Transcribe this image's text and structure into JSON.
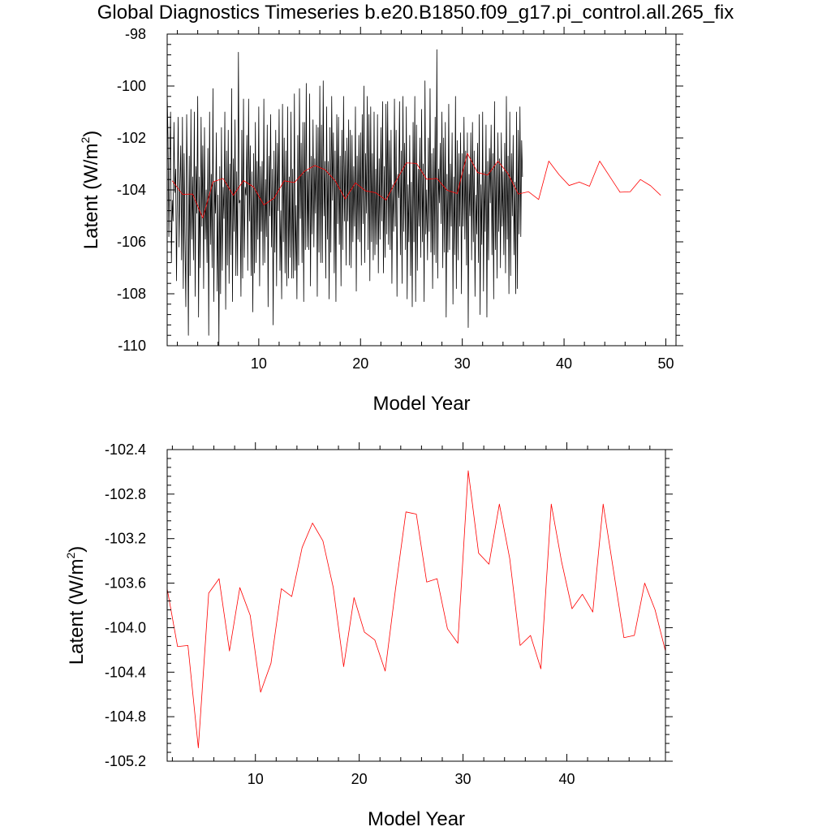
{
  "title": "Global Diagnostics Timeseries b.e20.B1850.f09_g17.pi_control.all.265_fix",
  "colors": {
    "monthly": "#000000",
    "annual": "#ff0000",
    "frame": "#000000"
  },
  "chart_data": [
    {
      "type": "line",
      "xlabel": "Model Year",
      "ylabel_main": "Latent (W/m",
      "ylabel_sup": "2",
      "ylabel_close": ")",
      "xlim": [
        1,
        51
      ],
      "ylim": [
        -110,
        -98
      ],
      "xticks": [
        10,
        20,
        30,
        40,
        50
      ],
      "xtick_labels": [
        "10",
        "20",
        "30",
        "40",
        "50"
      ],
      "yticks": [
        -110,
        -108,
        -106,
        -104,
        -102,
        -100,
        -98
      ],
      "ytick_labels": [
        "-110",
        "-108",
        "-106",
        "-104",
        "-102",
        "-100",
        "-98"
      ],
      "series": [
        {
          "color": "#000000",
          "x_start": 1.0,
          "x_step": 0.0833333,
          "values": [
            -100.3,
            -102.0,
            -105.8,
            -103.0,
            -101.0,
            -106.8,
            -104.4,
            -105.2,
            -101.4,
            -104.1,
            -103.2,
            -107.5,
            -104.1,
            -101.2,
            -106.2,
            -103.9,
            -102.3,
            -106.7,
            -101.2,
            -107.8,
            -102.6,
            -105.9,
            -108.5,
            -101.1,
            -104.2,
            -109.6,
            -102.7,
            -107.3,
            -100.9,
            -105.9,
            -103.5,
            -106.7,
            -101.0,
            -108.1,
            -103.1,
            -104.9,
            -100.4,
            -108.9,
            -103.5,
            -107.0,
            -101.2,
            -105.4,
            -102.3,
            -107.8,
            -101.6,
            -105.9,
            -104.0,
            -106.8,
            -102.4,
            -109.6,
            -101.0,
            -106.1,
            -103.4,
            -107.0,
            -100.1,
            -108.3,
            -103.7,
            -104.9,
            -101.8,
            -107.9,
            -104.2,
            -110.0,
            -103.1,
            -108.0,
            -101.6,
            -107.1,
            -103.9,
            -105.1,
            -101.0,
            -108.6,
            -102.5,
            -106.9,
            -101.7,
            -107.6,
            -103.0,
            -106.5,
            -100.1,
            -108.3,
            -102.8,
            -105.6,
            -101.3,
            -107.3,
            -103.3,
            -107.3,
            -98.7,
            -104.5,
            -104.4,
            -108.1,
            -101.7,
            -107.4,
            -100.5,
            -106.6,
            -103.9,
            -104.2,
            -101.9,
            -107.1,
            -100.5,
            -105.2,
            -102.3,
            -107.3,
            -103.3,
            -108.7,
            -102.6,
            -107.2,
            -101.4,
            -106.8,
            -102.9,
            -105.9,
            -100.8,
            -107.7,
            -103.1,
            -105.6,
            -102.9,
            -106.9,
            -100.5,
            -106.8,
            -103.6,
            -105.8,
            -101.5,
            -108.5,
            -102.7,
            -105.0,
            -101.1,
            -106.2,
            -103.2,
            -109.2,
            -102.5,
            -106.4,
            -101.7,
            -107.7,
            -102.2,
            -104.8,
            -100.9,
            -107.1,
            -104.8,
            -108.2,
            -100.7,
            -106.0,
            -102.0,
            -107.2,
            -102.5,
            -107.7,
            -100.8,
            -107.4,
            -103.5,
            -106.6,
            -101.0,
            -107.4,
            -103.2,
            -107.4,
            -100.3,
            -107.1,
            -104.6,
            -108.2,
            -101.9,
            -106.9,
            -100.1,
            -105.1,
            -102.2,
            -106.8,
            -101.4,
            -108.3,
            -101.4,
            -106.3,
            -99.9,
            -106.2,
            -103.3,
            -106.3,
            -100.3,
            -107.7,
            -102.7,
            -105.7,
            -101.3,
            -106.2,
            -102.8,
            -104.9,
            -101.5,
            -108.1,
            -101.6,
            -106.4,
            -100.0,
            -106.8,
            -101.5,
            -106.8,
            -99.8,
            -105.0,
            -102.9,
            -107.4,
            -100.8,
            -105.9,
            -102.9,
            -108.2,
            -101.6,
            -106.4,
            -100.4,
            -104.4,
            -101.8,
            -107.2,
            -102.5,
            -108.3,
            -101.1,
            -105.3,
            -101.2,
            -106.1,
            -102.7,
            -107.7,
            -101.7,
            -106.3,
            -100.4,
            -105.2,
            -102.5,
            -106.9,
            -102.0,
            -105.2,
            -101.3,
            -106.9,
            -101.7,
            -107.0,
            -101.9,
            -106.0,
            -103.1,
            -105.4,
            -100.8,
            -107.9,
            -102.7,
            -105.9,
            -101.9,
            -106.0,
            -101.8,
            -106.9,
            -101.1,
            -105.3,
            -100.0,
            -106.8,
            -102.6,
            -104.9,
            -100.4,
            -106.3,
            -101.1,
            -107.5,
            -100.8,
            -106.0,
            -102.6,
            -106.7,
            -101.0,
            -106.5,
            -103.2,
            -106.1,
            -101.1,
            -107.2,
            -102.8,
            -105.9,
            -101.6,
            -105.2,
            -100.6,
            -107.2,
            -103.1,
            -106.6,
            -100.7,
            -105.7,
            -100.6,
            -106.1,
            -102.1,
            -106.3,
            -101.7,
            -107.6,
            -103.8,
            -105.6,
            -100.5,
            -105.4,
            -101.7,
            -108.1,
            -103.4,
            -104.3,
            -100.6,
            -106.5,
            -102.5,
            -107.6,
            -100.4,
            -105.6,
            -102.2,
            -106.3,
            -100.8,
            -108.2,
            -103.8,
            -106.0,
            -101.9,
            -107.3,
            -103.7,
            -108.5,
            -101.4,
            -106.0,
            -100.4,
            -108.3,
            -101.5,
            -107.1,
            -103.2,
            -105.4,
            -102.0,
            -106.6,
            -100.9,
            -106.0,
            -103.0,
            -108.3,
            -99.8,
            -105.7,
            -104.0,
            -106.7,
            -102.0,
            -105.6,
            -100.1,
            -106.4,
            -102.6,
            -107.8,
            -102.4,
            -106.5,
            -101.2,
            -106.8,
            -98.6,
            -107.4,
            -103.2,
            -104.5,
            -102.2,
            -105.3,
            -101.0,
            -107.0,
            -102.0,
            -106.4,
            -101.4,
            -108.9,
            -103.4,
            -106.4,
            -100.7,
            -106.3,
            -103.0,
            -105.4,
            -101.8,
            -108.4,
            -103.5,
            -106.5,
            -100.4,
            -107.8,
            -102.1,
            -106.7,
            -102.6,
            -105.4,
            -101.8,
            -108.0,
            -102.6,
            -105.4,
            -101.2,
            -105.9,
            -102.5,
            -106.9,
            -101.8,
            -109.3,
            -103.4,
            -105.0,
            -101.8,
            -106.7,
            -101.4,
            -106.0,
            -102.5,
            -108.1,
            -104.2,
            -105.7,
            -102.2,
            -106.8,
            -101.1,
            -108.8,
            -103.8,
            -106.1,
            -101.0,
            -107.9,
            -103.3,
            -105.6,
            -101.5,
            -108.9,
            -102.9,
            -106.7,
            -102.4,
            -104.5,
            -101.5,
            -106.5,
            -102.6,
            -108.2,
            -100.6,
            -106.3,
            -103.0,
            -107.4,
            -101.8,
            -105.6,
            -102.8,
            -107.0,
            -101.8,
            -105.4,
            -103.3,
            -106.5,
            -102.2,
            -107.2,
            -100.4,
            -105.9,
            -102.7,
            -108.0,
            -101.0,
            -107.3,
            -102.6,
            -105.0,
            -101.9,
            -106.5,
            -103.7,
            -108.0,
            -101.0,
            -107.8,
            -101.7,
            -105.7,
            -100.8,
            -105.8,
            -102.1,
            -103.5
          ]
        },
        {
          "color": "#ff0000",
          "x": [
            1.5,
            2.5,
            3.5,
            4.5,
            5.5,
            6.5,
            7.5,
            8.5,
            9.5,
            10.5,
            11.5,
            12.5,
            13.5,
            14.5,
            15.5,
            16.5,
            17.5,
            18.5,
            19.5,
            20.5,
            21.5,
            22.5,
            23.5,
            24.5,
            25.5,
            26.5,
            27.5,
            28.5,
            29.5,
            30.5,
            31.5,
            32.5,
            33.5,
            34.5,
            35.5,
            36.5,
            37.5,
            38.5,
            39.5,
            40.5,
            41.5,
            42.5,
            43.5,
            44.5,
            45.5,
            46.5,
            47.5,
            48.5,
            49.5
          ],
          "values": [
            -103.65,
            -104.17,
            -104.16,
            -105.08,
            -103.69,
            -103.56,
            -104.21,
            -103.64,
            -103.89,
            -104.58,
            -104.32,
            -103.65,
            -103.72,
            -103.28,
            -103.06,
            -103.22,
            -103.64,
            -104.35,
            -103.73,
            -104.04,
            -104.11,
            -104.39,
            -103.65,
            -102.96,
            -102.98,
            -103.59,
            -103.56,
            -104.01,
            -104.14,
            -102.59,
            -103.33,
            -103.43,
            -102.89,
            -103.38,
            -104.16,
            -104.07,
            -104.37,
            -102.89,
            -103.41,
            -103.83,
            -103.7,
            -103.86,
            -102.89,
            -103.49,
            -104.09,
            -104.07,
            -103.6,
            -103.84,
            -104.21
          ]
        }
      ]
    },
    {
      "type": "line",
      "xlabel": "Model Year",
      "ylabel_main": "Latent (W/m",
      "ylabel_sup": "2",
      "ylabel_close": ")",
      "xlim": [
        1.5,
        49.5
      ],
      "ylim": [
        -105.2,
        -102.4
      ],
      "xticks": [
        10,
        20,
        30,
        40
      ],
      "xtick_labels": [
        "10",
        "20",
        "30",
        "40"
      ],
      "yticks": [
        -105.2,
        -104.8,
        -104.4,
        -104.0,
        -103.6,
        -103.2,
        -102.8,
        -102.4
      ],
      "ytick_labels": [
        "-105.2",
        "-104.8",
        "-104.4",
        "-104.0",
        "-103.6",
        "-103.2",
        "-102.8",
        "-102.4"
      ],
      "series": [
        {
          "color": "#ff0000",
          "x": [
            1.5,
            2.5,
            3.5,
            4.5,
            5.5,
            6.5,
            7.5,
            8.5,
            9.5,
            10.5,
            11.5,
            12.5,
            13.5,
            14.5,
            15.5,
            16.5,
            17.5,
            18.5,
            19.5,
            20.5,
            21.5,
            22.5,
            23.5,
            24.5,
            25.5,
            26.5,
            27.5,
            28.5,
            29.5,
            30.5,
            31.5,
            32.5,
            33.5,
            34.5,
            35.5,
            36.5,
            37.5,
            38.5,
            39.5,
            40.5,
            41.5,
            42.5,
            43.5,
            44.5,
            45.5,
            46.5,
            47.5,
            48.5,
            49.5
          ],
          "values": [
            -103.65,
            -104.17,
            -104.16,
            -105.08,
            -103.69,
            -103.56,
            -104.21,
            -103.64,
            -103.89,
            -104.58,
            -104.32,
            -103.65,
            -103.72,
            -103.28,
            -103.06,
            -103.22,
            -103.64,
            -104.35,
            -103.73,
            -104.04,
            -104.11,
            -104.39,
            -103.65,
            -102.96,
            -102.98,
            -103.59,
            -103.56,
            -104.01,
            -104.14,
            -102.59,
            -103.33,
            -103.43,
            -102.89,
            -103.38,
            -104.16,
            -104.07,
            -104.37,
            -102.89,
            -103.41,
            -103.83,
            -103.7,
            -103.86,
            -102.89,
            -103.49,
            -104.09,
            -104.07,
            -103.6,
            -103.84,
            -104.21
          ]
        }
      ]
    }
  ]
}
